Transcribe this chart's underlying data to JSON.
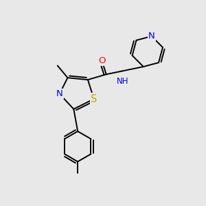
{
  "bg_color": "#e8e8e8",
  "atom_colors": {
    "C": "#000000",
    "N": "#0000ee",
    "O": "#ff0000",
    "S": "#bbaa00",
    "H": "#555555"
  },
  "font_size": 8.5,
  "line_width": 1.4,
  "dbo": 0.09
}
